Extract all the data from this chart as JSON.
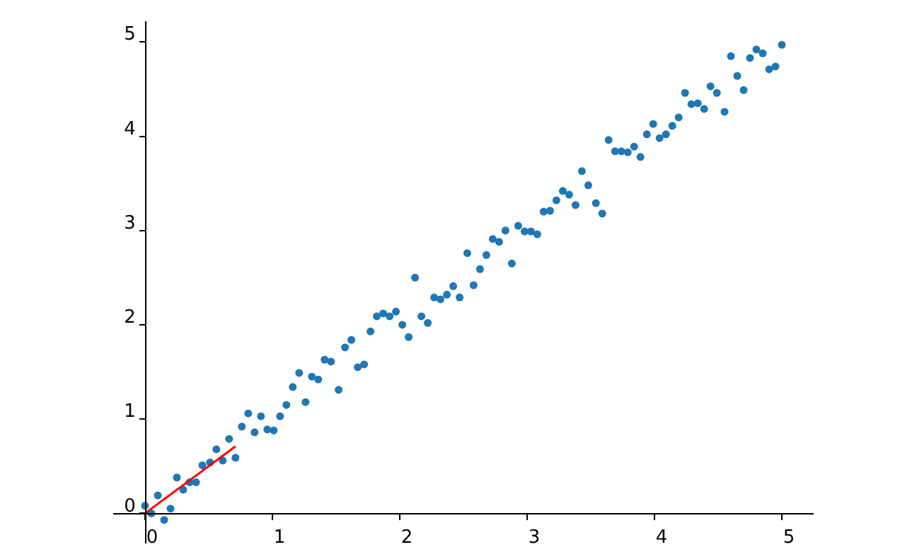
{
  "chart_data": {
    "type": "scatter",
    "xlim": [
      -0.25,
      5.25
    ],
    "ylim": [
      -0.32,
      5.22
    ],
    "xticks": [
      0,
      1,
      2,
      3,
      4,
      5
    ],
    "yticks": [
      0,
      1,
      2,
      3,
      4,
      5
    ],
    "grid": false,
    "legend": false,
    "series": [
      {
        "marker": "circle",
        "color": "#1f77b4",
        "x": [
          0,
          0.05,
          0.1,
          0.15,
          0.2,
          0.25,
          0.3,
          0.35,
          0.4,
          0.45,
          0.51,
          0.56,
          0.61,
          0.66,
          0.71,
          0.76,
          0.81,
          0.86,
          0.91,
          0.96,
          1.01,
          1.06,
          1.11,
          1.16,
          1.21,
          1.26,
          1.31,
          1.36,
          1.41,
          1.46,
          1.52,
          1.57,
          1.62,
          1.67,
          1.72,
          1.77,
          1.82,
          1.87,
          1.92,
          1.97,
          2.02,
          2.07,
          2.12,
          2.17,
          2.22,
          2.27,
          2.32,
          2.37,
          2.42,
          2.47,
          2.53,
          2.58,
          2.63,
          2.68,
          2.73,
          2.78,
          2.83,
          2.88,
          2.93,
          2.98,
          3.03,
          3.08,
          3.13,
          3.18,
          3.23,
          3.28,
          3.33,
          3.38,
          3.43,
          3.48,
          3.54,
          3.59,
          3.64,
          3.69,
          3.74,
          3.79,
          3.84,
          3.89,
          3.94,
          3.99,
          4.04,
          4.09,
          4.14,
          4.19,
          4.24,
          4.29,
          4.34,
          4.39,
          4.44,
          4.49,
          4.55,
          4.6,
          4.65,
          4.7,
          4.75,
          4.8,
          4.85,
          4.9,
          4.95,
          5
        ],
        "values": [
          0.08,
          0.0,
          0.19,
          -0.07,
          0.05,
          0.38,
          0.25,
          0.33,
          0.33,
          0.51,
          0.54,
          0.68,
          0.56,
          0.79,
          0.59,
          0.92,
          1.06,
          0.86,
          1.03,
          0.89,
          0.88,
          1.03,
          1.15,
          1.34,
          1.49,
          1.18,
          1.45,
          1.42,
          1.63,
          1.61,
          1.31,
          1.76,
          1.84,
          1.55,
          1.58,
          1.93,
          2.09,
          2.12,
          2.09,
          2.14,
          2.0,
          1.87,
          2.5,
          2.09,
          2.02,
          2.29,
          2.27,
          2.32,
          2.41,
          2.29,
          2.76,
          2.42,
          2.59,
          2.74,
          2.91,
          2.88,
          3.0,
          2.65,
          3.05,
          2.99,
          2.99,
          2.96,
          3.2,
          3.21,
          3.32,
          3.42,
          3.38,
          3.27,
          3.63,
          3.48,
          3.29,
          3.18,
          3.96,
          3.84,
          3.84,
          3.83,
          3.89,
          3.78,
          4.02,
          4.13,
          3.98,
          4.02,
          4.11,
          4.2,
          4.46,
          4.34,
          4.35,
          4.29,
          4.53,
          4.46,
          4.26,
          4.85,
          4.64,
          4.49,
          4.83,
          4.92,
          4.88,
          4.71,
          4.74,
          4.97
        ]
      },
      {
        "type": "line",
        "marker": "none",
        "color": "#ff0000",
        "x": [
          0,
          0.71
        ],
        "values": [
          0,
          0.71
        ]
      }
    ]
  }
}
